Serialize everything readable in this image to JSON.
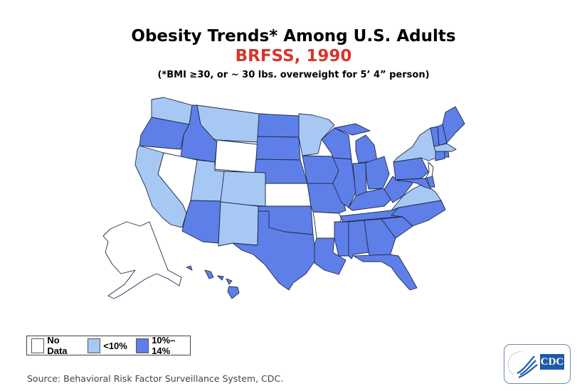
{
  "title": "Obesity Trends* Among U.S. Adults",
  "subtitle": "BRFSS, 1990",
  "footnote": "(*BMI ≥30, or ~ 30 lbs. overweight for 5’ 4” person)",
  "legend": [
    {
      "label": "No Data",
      "color": "#ffffff"
    },
    {
      "label": "<10%",
      "color": "#a8c8f4"
    },
    {
      "label": "10%–14%",
      "color": "#5f7fe8"
    }
  ],
  "source": "Source: Behavioral Risk Factor Surveillance System, CDC.",
  "logo": {
    "text": "CDC",
    "icon": "hhs-eagle-icon"
  },
  "state_categories": {
    "WA": "<10%",
    "OR": "10%–14%",
    "CA": "<10%",
    "ID": "10%–14%",
    "NV": "No Data",
    "MT": "<10%",
    "WY": "No Data",
    "UT": "<10%",
    "CO": "<10%",
    "AZ": "10%–14%",
    "NM": "<10%",
    "ND": "10%–14%",
    "SD": "10%–14%",
    "NE": "10%–14%",
    "KS": "No Data",
    "OK": "10%–14%",
    "TX": "10%–14%",
    "MN": "<10%",
    "IA": "10%–14%",
    "MO": "10%–14%",
    "AR": "No Data",
    "LA": "10%–14%",
    "WI": "10%–14%",
    "IL": "10%–14%",
    "MI": "10%–14%",
    "IN": "10%–14%",
    "OH": "10%–14%",
    "KY": "10%–14%",
    "TN": "10%–14%",
    "MS": "10%–14%",
    "AL": "10%–14%",
    "GA": "10%–14%",
    "FL": "10%–14%",
    "SC": "10%–14%",
    "NC": "10%–14%",
    "VA": "<10%",
    "WV": "10%–14%",
    "PA": "10%–14%",
    "NY": "<10%",
    "NJ": "No Data",
    "MD": "10%–14%",
    "DE": "10%–14%",
    "VT": "10%–14%",
    "NH": "10%–14%",
    "ME": "10%–14%",
    "MA": "<10%",
    "CT": "10%–14%",
    "RI": "10%–14%",
    "AK": "No Data",
    "HI": "10%–14%"
  }
}
